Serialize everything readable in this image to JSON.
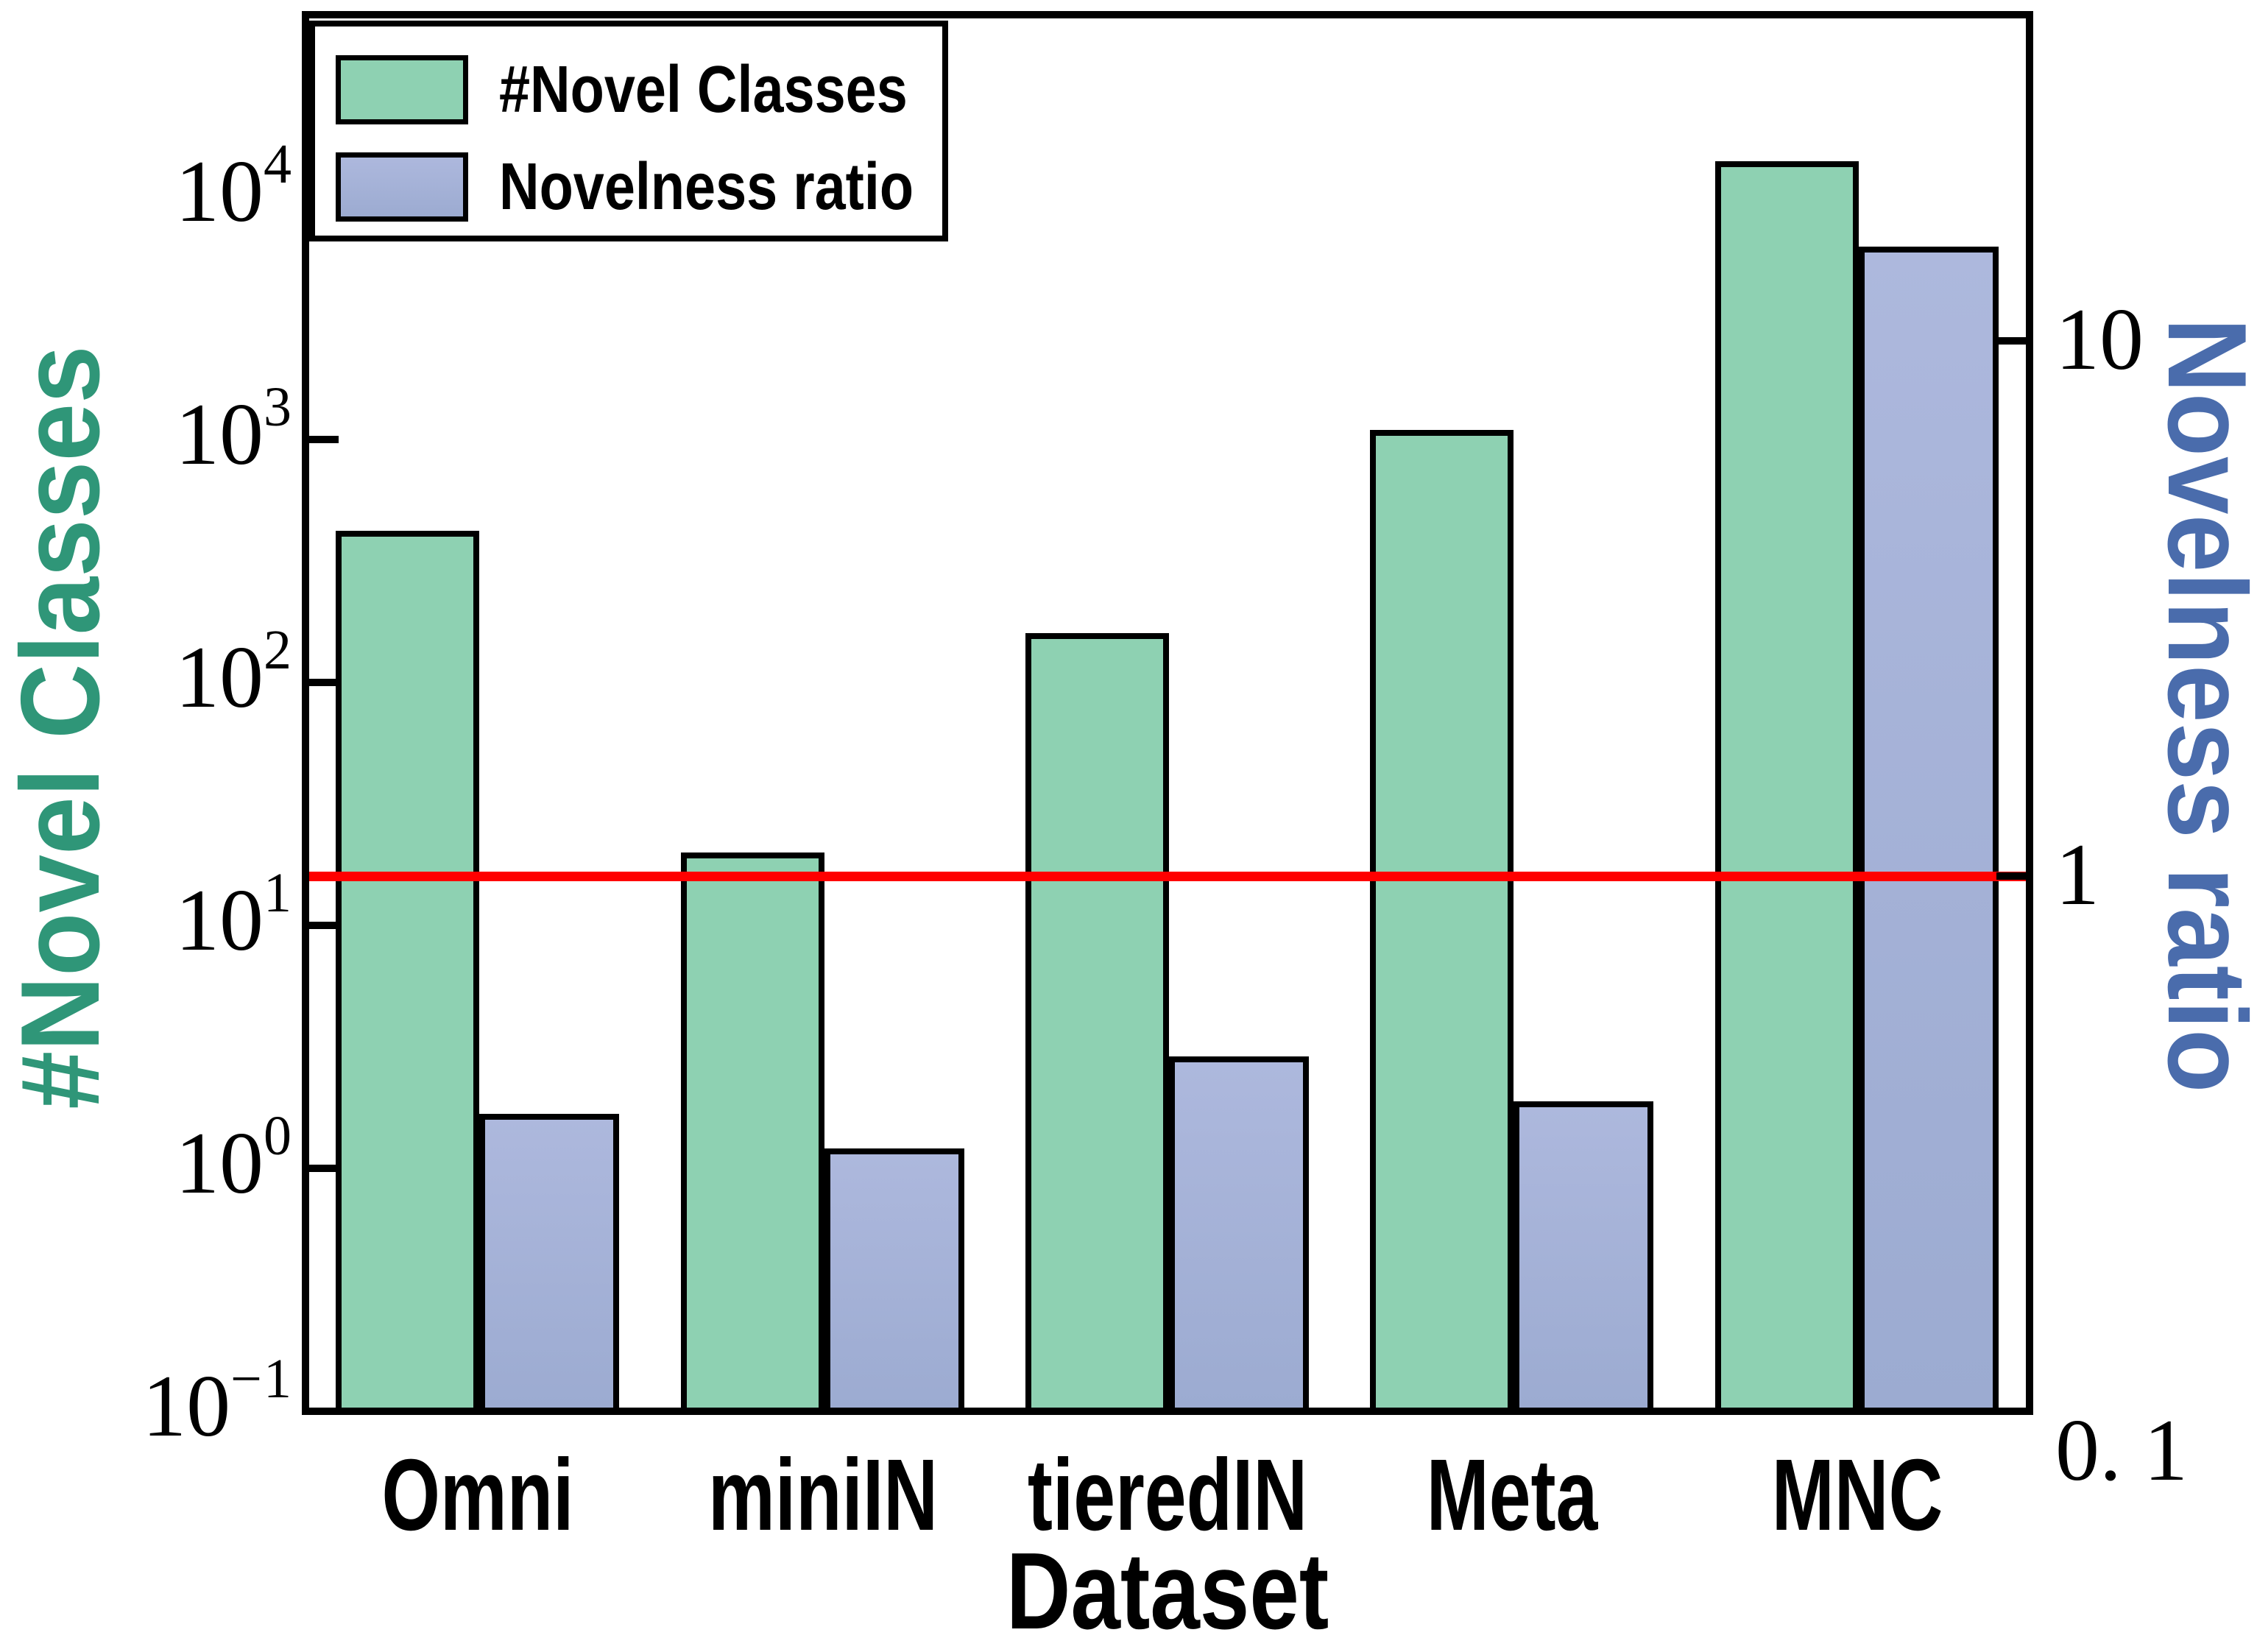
{
  "chart_data": {
    "type": "bar",
    "dual_axis": true,
    "categories": [
      "Omni",
      "miniIN",
      "tieredIN",
      "Meta",
      "MNC"
    ],
    "series": [
      {
        "name": "#Novel Classes",
        "axis": "left",
        "color": "#8ed1b2",
        "values": [
          423,
          20,
          160,
          1100,
          14000
        ]
      },
      {
        "name": "Novelness ratio",
        "axis": "right",
        "color": "#a5b1d6",
        "values": [
          0.36,
          0.31,
          0.46,
          0.38,
          15
        ]
      }
    ],
    "left_axis": {
      "label": "#Novel Classes",
      "color": "#2f9678",
      "scale": "log",
      "min": 0.1,
      "max": 56234,
      "ticks": [
        {
          "value": 10000,
          "base": "10",
          "exp": "4"
        },
        {
          "value": 1000,
          "base": "10",
          "exp": "3"
        },
        {
          "value": 100,
          "base": "10",
          "exp": "2"
        },
        {
          "value": 10,
          "base": "10",
          "exp": "1"
        },
        {
          "value": 1,
          "base": "10",
          "exp": "0"
        },
        {
          "value": 0.1,
          "base": "10",
          "exp": "−1"
        }
      ]
    },
    "right_axis": {
      "label": "Novelness ratio",
      "color": "#4a6cac",
      "scale": "log",
      "min": 0.1,
      "max": 40.7,
      "ticks": [
        {
          "value": 10,
          "label": "10",
          "dy": 0
        },
        {
          "value": 1,
          "label": "1",
          "dy": 0
        },
        {
          "value": 0.1,
          "label": "0. 1",
          "dy": 55
        }
      ]
    },
    "ref_line": {
      "value": 1,
      "axis": "right",
      "color": "#ff0000"
    },
    "xlabel": "Dataset",
    "grid": false,
    "legend_position": "upper-left"
  },
  "legend": {
    "items": [
      {
        "label": "#Novel Classes"
      },
      {
        "label": "Novelness ratio"
      }
    ]
  }
}
